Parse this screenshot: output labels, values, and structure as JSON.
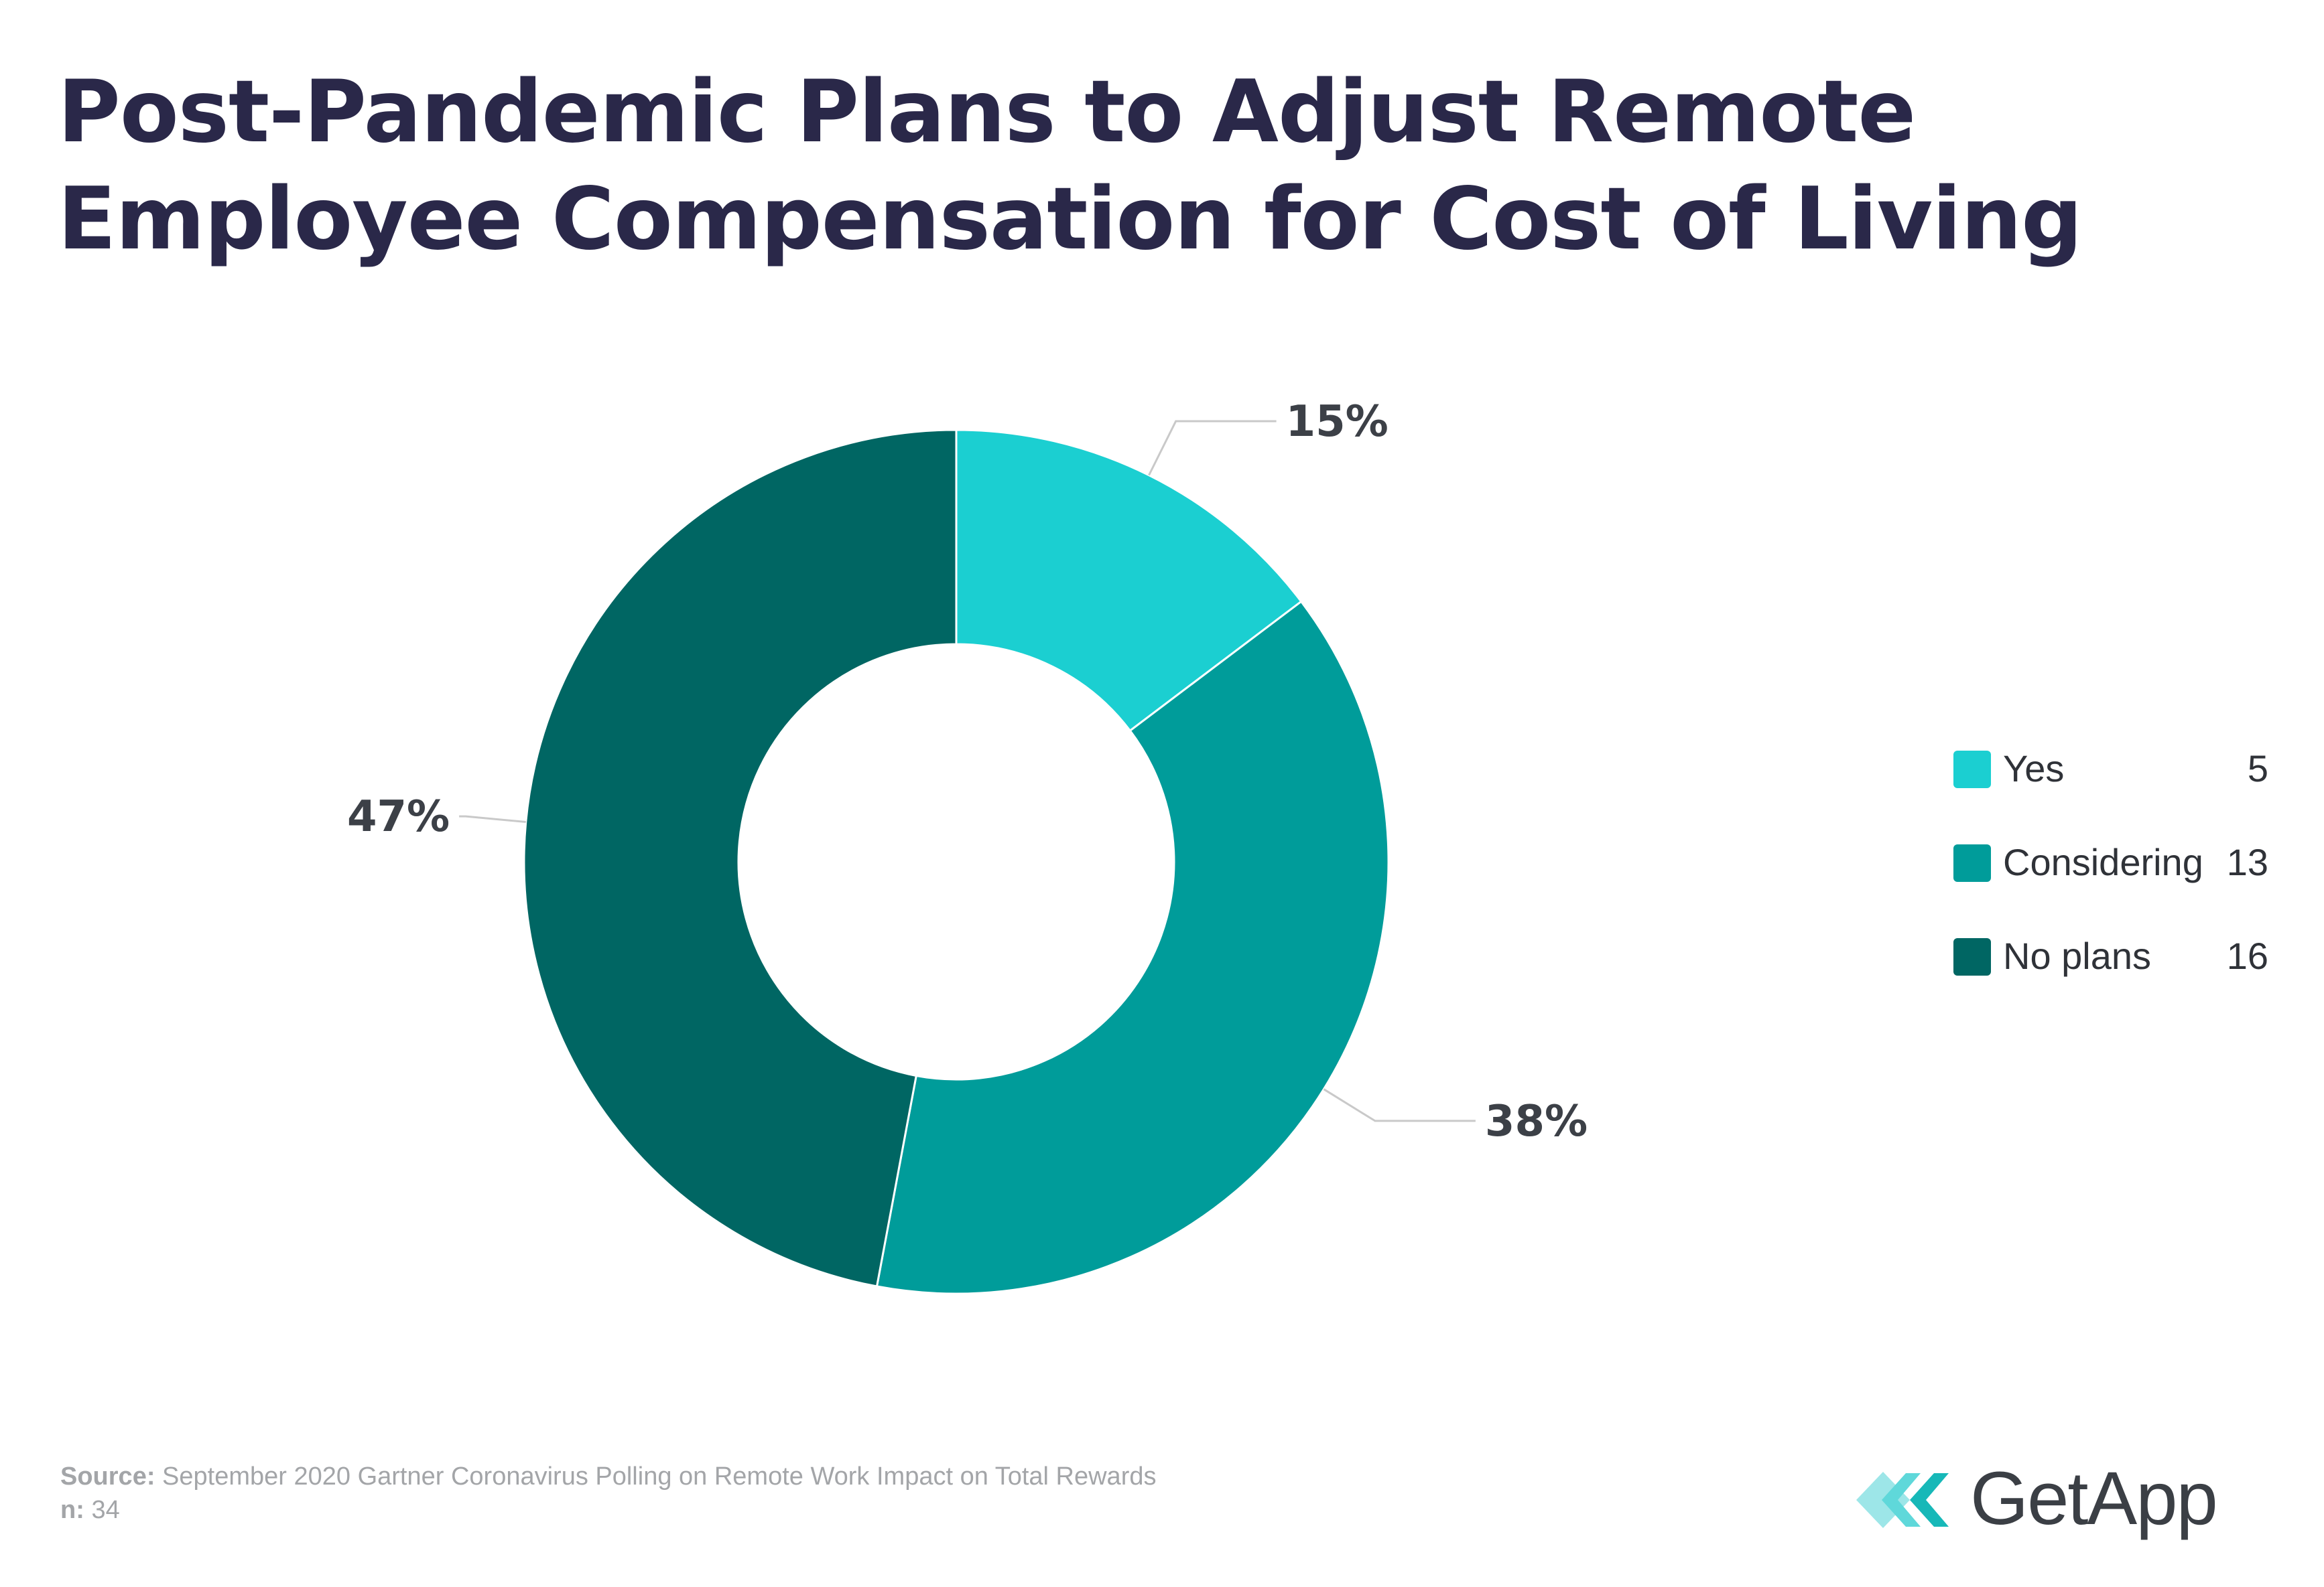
{
  "title_lines": [
    "Post-Pandemic Plans to Adjust Remote",
    "Employee Compensation for Cost of Living"
  ],
  "chart_data": {
    "type": "pie",
    "title": "Post-Pandemic Plans to Adjust Remote Employee Compensation for Cost of Living",
    "donut": true,
    "categories": [
      "Yes",
      "Considering",
      "No plans"
    ],
    "values": [
      5,
      13,
      16
    ],
    "percent_labels": [
      "15%",
      "38%",
      "47%"
    ],
    "colors": [
      "#1bcfd1",
      "#009c9a",
      "#006663"
    ],
    "legend_position": "right"
  },
  "footer": {
    "source_label": "Source:",
    "source_text": "September 2020 Gartner Coronavirus Polling on Remote Work Impact on Total Rewards",
    "n_label": "n:",
    "n_value": "34"
  },
  "logo": {
    "text": "GetApp",
    "icon": "getapp-chevrons-icon",
    "colors": [
      "#9de6e8",
      "#5fd8da",
      "#17b8b8"
    ]
  }
}
